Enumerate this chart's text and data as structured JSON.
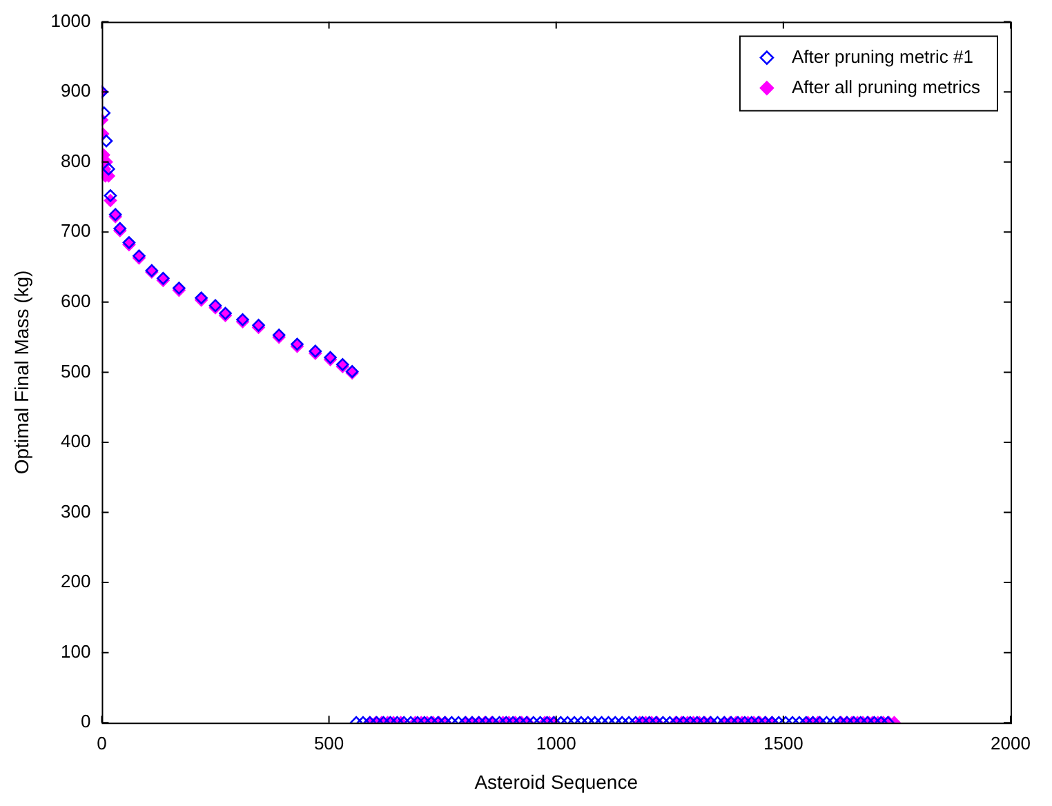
{
  "chart_data": {
    "type": "scatter",
    "xlabel": "Asteroid Sequence",
    "ylabel": "Optimal Final Mass (kg)",
    "xlim": [
      0,
      2000
    ],
    "xticks": [
      0,
      500,
      1000,
      1500,
      2000
    ],
    "ylim": [
      0,
      1000
    ],
    "yticks": [
      0,
      100,
      200,
      300,
      400,
      500,
      600,
      700,
      800,
      900,
      1000
    ],
    "grid": false,
    "legend": "top right",
    "marker": "diamond",
    "series": [
      {
        "name": "After pruning metric #1",
        "color": "#0000ff",
        "x": [
          0,
          5,
          10,
          15,
          19,
          30,
          40,
          60,
          82,
          110,
          135,
          170,
          219,
          250,
          272,
          310,
          345,
          390,
          430,
          470,
          503,
          530,
          551,
          560,
          575,
          590,
          605,
          620,
          635,
          650,
          665,
          680,
          695,
          710,
          725,
          740,
          755,
          770,
          785,
          800,
          815,
          830,
          845,
          860,
          875,
          890,
          905,
          920,
          935,
          950,
          965,
          980,
          995,
          1010,
          1025,
          1040,
          1055,
          1070,
          1085,
          1100,
          1115,
          1130,
          1145,
          1160,
          1175,
          1190,
          1205,
          1220,
          1235,
          1250,
          1265,
          1280,
          1295,
          1310,
          1325,
          1340,
          1355,
          1370,
          1385,
          1400,
          1415,
          1430,
          1445,
          1460,
          1475,
          1490,
          1505,
          1520,
          1535,
          1550,
          1565,
          1580,
          1595,
          1610,
          1625,
          1640,
          1655,
          1670,
          1685,
          1700,
          1715,
          1730
        ],
        "values": [
          900,
          870,
          830,
          790,
          752,
          725,
          705,
          685,
          666,
          645,
          634,
          620,
          606,
          595,
          584,
          575,
          567,
          553,
          540,
          530,
          521,
          511,
          501,
          0,
          0,
          0,
          0,
          0,
          0,
          0,
          0,
          0,
          0,
          0,
          0,
          0,
          0,
          0,
          0,
          0,
          0,
          0,
          0,
          0,
          0,
          0,
          0,
          0,
          0,
          0,
          0,
          0,
          0,
          0,
          0,
          0,
          0,
          0,
          0,
          0,
          0,
          0,
          0,
          0,
          0,
          0,
          0,
          0,
          0,
          0,
          0,
          0,
          0,
          0,
          0,
          0,
          0,
          0,
          0,
          0,
          0,
          0,
          0,
          0,
          0,
          0,
          0,
          0,
          0,
          0,
          0,
          0,
          0,
          0,
          0,
          0,
          0,
          0,
          0,
          0,
          0,
          0
        ]
      },
      {
        "name": "After all pruning metrics",
        "color": "#ff00ff",
        "x": [
          0,
          0,
          2,
          4,
          6,
          8,
          10,
          15,
          19,
          30,
          40,
          60,
          82,
          110,
          135,
          170,
          219,
          250,
          272,
          310,
          345,
          390,
          430,
          470,
          503,
          530,
          551,
          590,
          603,
          616,
          629,
          642,
          658,
          690,
          703,
          716,
          729,
          742,
          756,
          801,
          815,
          829,
          843,
          858,
          883,
          896,
          910,
          924,
          937,
          975,
          985,
          994,
          1184,
          1197,
          1210,
          1222,
          1263,
          1276,
          1289,
          1302,
          1315,
          1327,
          1339,
          1370,
          1383,
          1396,
          1409,
          1422,
          1435,
          1448,
          1461,
          1475,
          1554,
          1565,
          1576,
          1627,
          1639,
          1651,
          1663,
          1675,
          1687,
          1696,
          1708,
          1720,
          1732,
          1744
        ],
        "values": [
          900,
          860,
          840,
          810,
          790,
          780,
          800,
          780,
          745,
          722,
          702,
          682,
          663,
          643,
          631,
          617,
          603,
          592,
          581,
          572,
          564,
          550,
          537,
          527,
          518,
          508,
          499,
          0,
          0,
          0,
          0,
          0,
          0,
          0,
          0,
          0,
          0,
          0,
          0,
          0,
          0,
          0,
          0,
          0,
          0,
          0,
          0,
          0,
          0,
          0,
          0,
          0,
          0,
          0,
          0,
          0,
          0,
          0,
          0,
          0,
          0,
          0,
          0,
          0,
          0,
          0,
          0,
          0,
          0,
          0,
          0,
          0,
          0,
          0,
          0,
          0,
          0,
          0,
          0,
          0,
          0,
          0,
          0,
          0,
          0,
          0
        ]
      }
    ]
  }
}
